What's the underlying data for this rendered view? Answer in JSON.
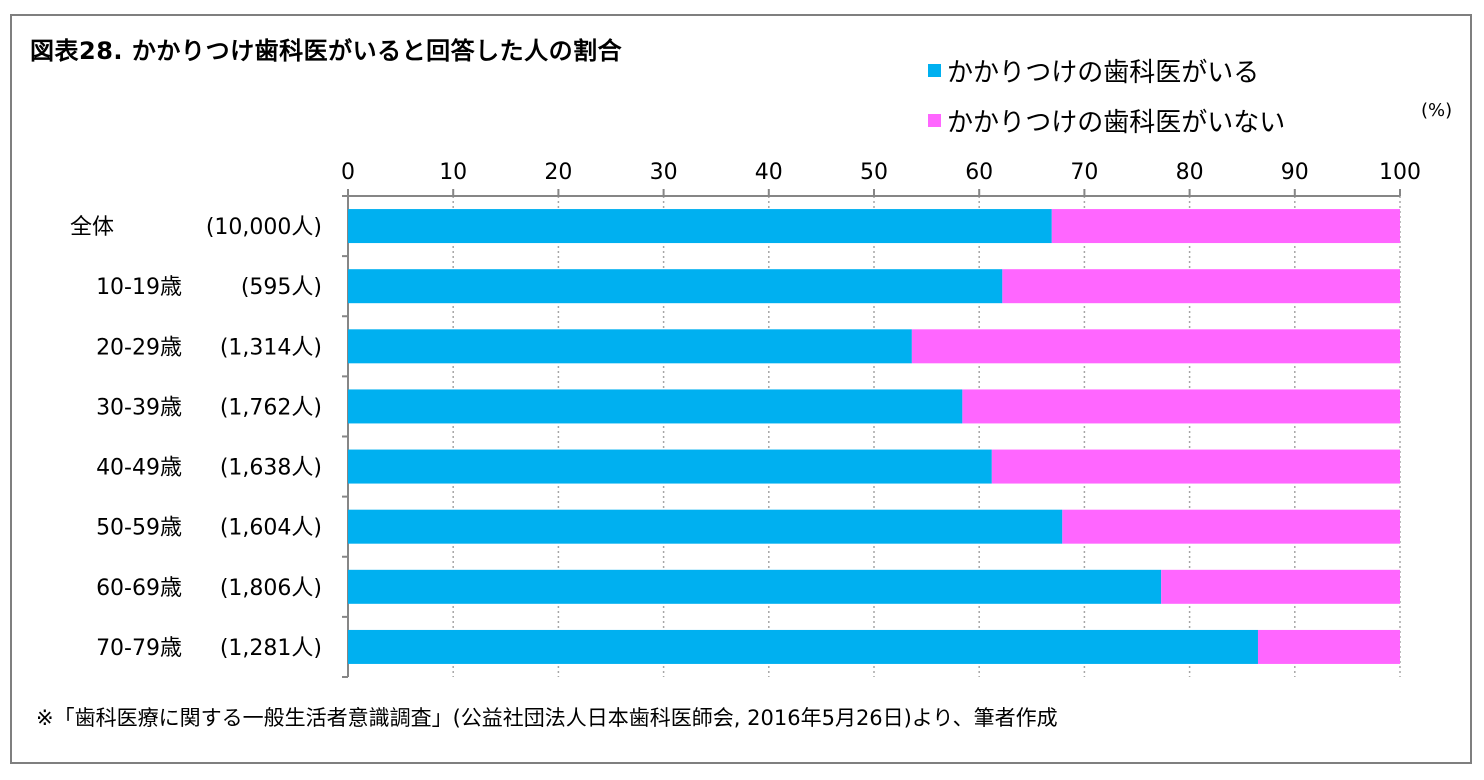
{
  "chart_data": {
    "type": "bar",
    "stacked": true,
    "orientation": "horizontal",
    "title": "図表28. かかりつけ歯科医がいると回答した人の割合",
    "unit_label": "(%)",
    "xlim": [
      0,
      100
    ],
    "x_ticks": [
      "0",
      "10",
      "20",
      "30",
      "40",
      "50",
      "60",
      "70",
      "80",
      "90",
      "100"
    ],
    "grid": true,
    "legend_position": "top-right",
    "categories": [
      {
        "group": "全体",
        "n": "(10,000人)"
      },
      {
        "group": "10-19歳",
        "n": "(595人)"
      },
      {
        "group": "20-29歳",
        "n": "(1,314人)"
      },
      {
        "group": "30-39歳",
        "n": "(1,762人)"
      },
      {
        "group": "40-49歳",
        "n": "(1,638人)"
      },
      {
        "group": "50-59歳",
        "n": "(1,604人)"
      },
      {
        "group": "60-69歳",
        "n": "(1,806人)"
      },
      {
        "group": "70-79歳",
        "n": "(1,281人)"
      }
    ],
    "series": [
      {
        "name": "かかりつけの歯科医がいる",
        "color": "#00b0f0",
        "values": [
          66.9,
          62.2,
          53.6,
          58.4,
          61.2,
          67.9,
          77.3,
          86.5
        ]
      },
      {
        "name": "かかりつけの歯科医がいない",
        "color": "#ff66ff",
        "values": [
          33.1,
          37.8,
          46.4,
          41.6,
          38.8,
          32.1,
          22.7,
          13.5
        ]
      }
    ]
  },
  "source_note": "※「歯科医療に関する一般生活者意識調査」(公益社団法人日本歯科医師会, 2016年5月26日)より、筆者作成"
}
